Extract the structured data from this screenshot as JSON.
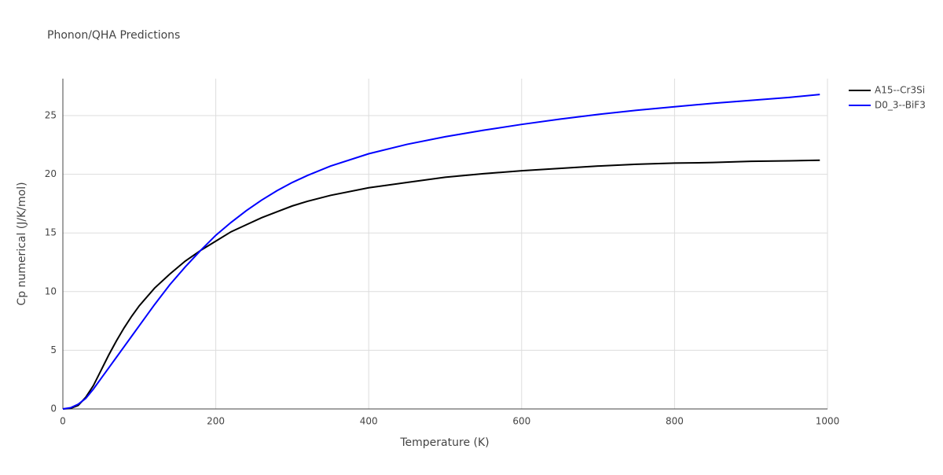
{
  "chart_data": {
    "type": "line",
    "title": "Phonon/QHA Predictions",
    "x_label": "Temperature (K)",
    "y_label": "Cp numerical (J/K/mol)",
    "x": [
      0,
      10,
      20,
      30,
      40,
      50,
      60,
      70,
      80,
      90,
      100,
      120,
      140,
      160,
      180,
      200,
      220,
      240,
      260,
      280,
      300,
      320,
      350,
      400,
      450,
      500,
      550,
      600,
      650,
      700,
      750,
      800,
      850,
      900,
      950,
      990
    ],
    "series": [
      {
        "name": "A15--Cr3Si",
        "color": "#000000",
        "values": [
          0,
          0.05,
          0.3,
          1.0,
          2.0,
          3.3,
          4.6,
          5.8,
          6.9,
          7.9,
          8.8,
          10.3,
          11.5,
          12.6,
          13.5,
          14.3,
          15.1,
          15.7,
          16.3,
          16.8,
          17.3,
          17.7,
          18.2,
          18.85,
          19.3,
          19.75,
          20.05,
          20.3,
          20.5,
          20.7,
          20.85,
          20.95,
          21.0,
          21.1,
          21.15,
          21.2
        ]
      },
      {
        "name": "D0_3--BiF3",
        "color": "#0000ff",
        "values": [
          0,
          0.1,
          0.4,
          0.9,
          1.7,
          2.6,
          3.5,
          4.4,
          5.3,
          6.2,
          7.1,
          8.9,
          10.6,
          12.1,
          13.5,
          14.8,
          15.9,
          16.9,
          17.8,
          18.6,
          19.3,
          19.9,
          20.7,
          21.75,
          22.55,
          23.2,
          23.75,
          24.25,
          24.7,
          25.1,
          25.45,
          25.75,
          26.05,
          26.3,
          26.55,
          26.8
        ]
      }
    ],
    "xlim": [
      0,
      1000
    ],
    "xticks": [
      0,
      200,
      400,
      600,
      800,
      1000
    ],
    "ylim": [
      0,
      28.15
    ],
    "yticks": [
      0,
      5,
      10,
      15,
      20,
      25
    ],
    "grid": true
  }
}
